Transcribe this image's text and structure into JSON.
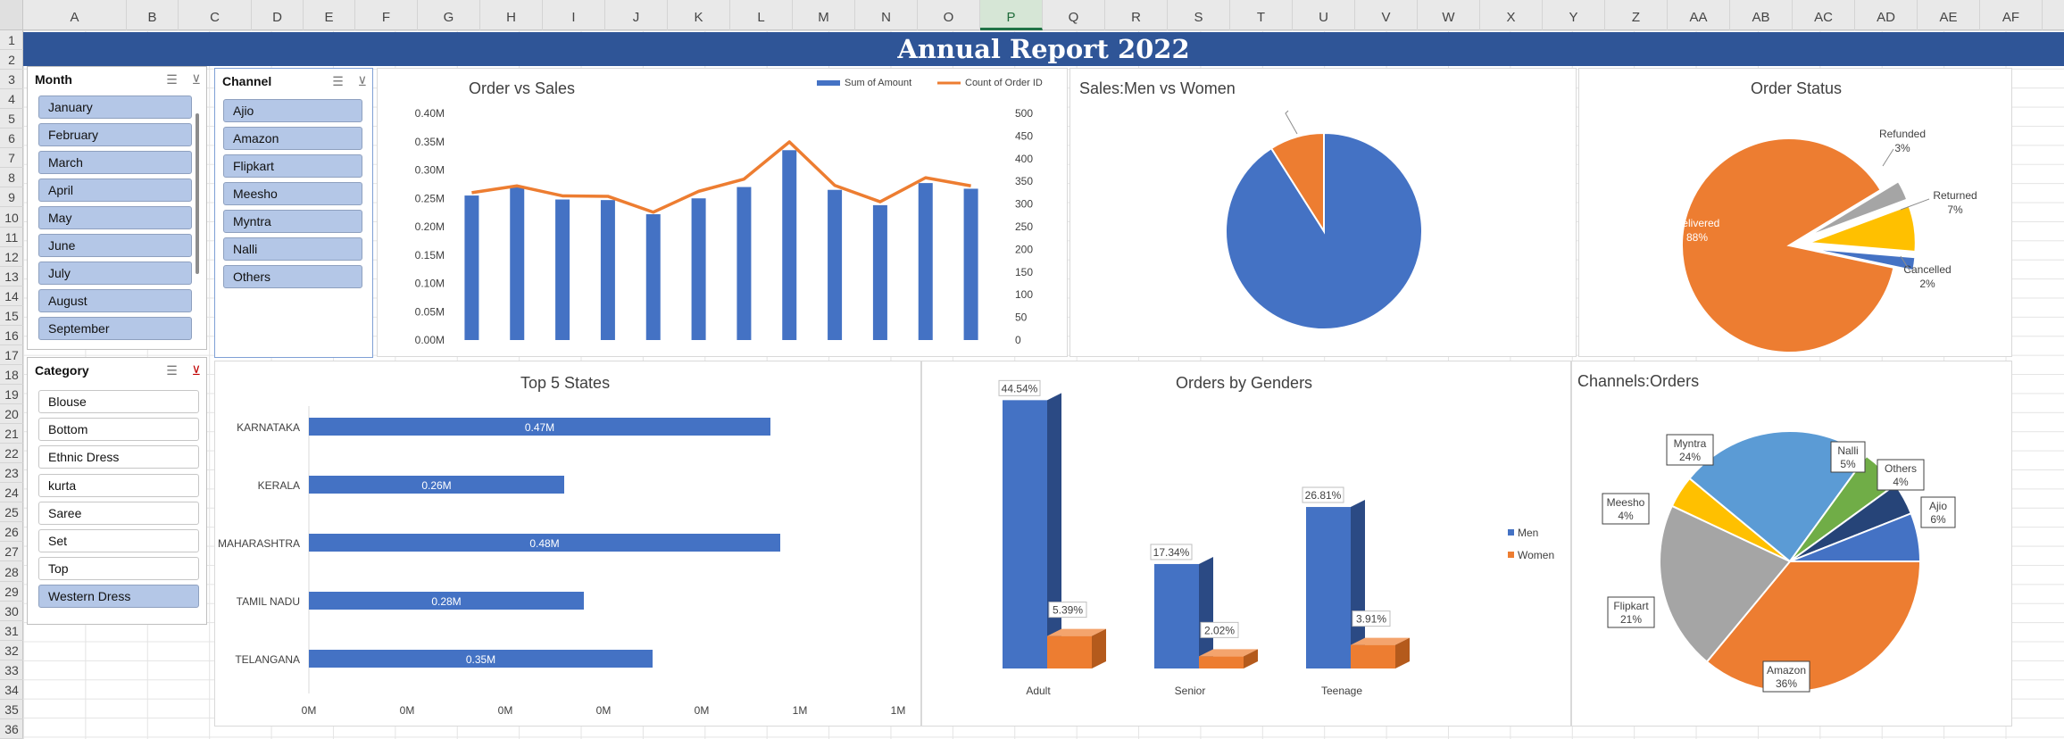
{
  "sheet": {
    "columns": [
      "A",
      "B",
      "C",
      "D",
      "E",
      "F",
      "G",
      "H",
      "I",
      "J",
      "K",
      "L",
      "M",
      "N",
      "O",
      "P",
      "Q",
      "R",
      "S",
      "T",
      "U",
      "V",
      "W",
      "X",
      "Y",
      "Z",
      "AA",
      "AB",
      "AC",
      "AD",
      "AE",
      "AF"
    ],
    "selected_column": "P",
    "rows": [
      "1",
      "2",
      "3",
      "4",
      "5",
      "6",
      "7",
      "8",
      "9",
      "10",
      "11",
      "12",
      "13",
      "14",
      "15",
      "16",
      "17",
      "18",
      "19",
      "20",
      "21",
      "22",
      "23",
      "24",
      "25",
      "26",
      "27",
      "28",
      "29",
      "30",
      "31",
      "32",
      "33",
      "34",
      "35",
      "36"
    ]
  },
  "dashboard": {
    "title": "Annual Report 2022"
  },
  "slicers": {
    "month": {
      "title": "Month",
      "items": [
        {
          "label": "January",
          "selected": true
        },
        {
          "label": "February",
          "selected": true
        },
        {
          "label": "March",
          "selected": true
        },
        {
          "label": "April",
          "selected": true
        },
        {
          "label": "May",
          "selected": true
        },
        {
          "label": "June",
          "selected": true
        },
        {
          "label": "July",
          "selected": true
        },
        {
          "label": "August",
          "selected": true
        },
        {
          "label": "September",
          "selected": true
        }
      ]
    },
    "channel": {
      "title": "Channel",
      "items": [
        {
          "label": "Ajio",
          "selected": true
        },
        {
          "label": "Amazon",
          "selected": true
        },
        {
          "label": "Flipkart",
          "selected": true
        },
        {
          "label": "Meesho",
          "selected": true
        },
        {
          "label": "Myntra",
          "selected": true
        },
        {
          "label": "Nalli",
          "selected": true
        },
        {
          "label": "Others",
          "selected": true
        }
      ]
    },
    "category": {
      "title": "Category",
      "items": [
        {
          "label": "Blouse",
          "selected": false
        },
        {
          "label": "Bottom",
          "selected": false
        },
        {
          "label": "Ethnic Dress",
          "selected": false
        },
        {
          "label": "kurta",
          "selected": false
        },
        {
          "label": "Saree",
          "selected": false
        },
        {
          "label": "Set",
          "selected": false
        },
        {
          "label": "Top",
          "selected": false
        },
        {
          "label": "Western Dress",
          "selected": true
        }
      ]
    }
  },
  "colors": {
    "blue": "#4472c4",
    "orange": "#ed7d31",
    "gray": "#a5a5a5",
    "yellow": "#ffc000",
    "lightblue": "#5b9bd5",
    "green": "#70ad47",
    "navy": "#264478",
    "band": "#2f5597"
  },
  "chart_data": [
    {
      "type": "bar",
      "title": "Order vs Sales",
      "series": [
        {
          "name": "Sum of Amount",
          "type": "bar",
          "axis": "left",
          "values": [
            0.255,
            0.27,
            0.248,
            0.247,
            0.222,
            0.25,
            0.27,
            0.335,
            0.265,
            0.238,
            0.277,
            0.267
          ]
        },
        {
          "name": "Count of Order ID",
          "type": "line",
          "axis": "right",
          "values": [
            325,
            340,
            318,
            317,
            282,
            328,
            355,
            437,
            341,
            305,
            358,
            340
          ]
        }
      ],
      "y_ticks": [
        "0.40M",
        "0.35M",
        "0.30M",
        "0.25M",
        "0.20M",
        "0.15M",
        "0.10M",
        "0.05M",
        "0.00M"
      ],
      "y2_ticks": [
        "500",
        "450",
        "400",
        "350",
        "300",
        "250",
        "200",
        "150",
        "100",
        "50",
        "0"
      ],
      "ylim": [
        0,
        0.4
      ],
      "y2lim": [
        0,
        500
      ],
      "legend": "top-right"
    },
    {
      "type": "pie",
      "title": "Sales:Men vs Women",
      "slices": [
        {
          "value": 91,
          "color": "#4472c4"
        },
        {
          "value": 9,
          "color": "#ed7d31"
        }
      ]
    },
    {
      "type": "pie",
      "title": "Order Status",
      "slices": [
        {
          "label": "Delivered",
          "pct": "88%",
          "value": 88,
          "color": "#ed7d31"
        },
        {
          "label": "Refunded",
          "pct": "3%",
          "value": 3,
          "color": "#a5a5a5"
        },
        {
          "label": "Returned",
          "pct": "7%",
          "value": 7,
          "color": "#ffc000"
        },
        {
          "label": "Cancelled",
          "pct": "2%",
          "value": 2,
          "color": "#4472c4"
        }
      ]
    },
    {
      "type": "bar",
      "title": "Top 5 States",
      "orientation": "horizontal",
      "categories": [
        "KARNATAKA",
        "KERALA",
        "MAHARASHTRA",
        "TAMIL NADU",
        "TELANGANA"
      ],
      "values": [
        0.47,
        0.26,
        0.48,
        0.28,
        0.35
      ],
      "value_labels": [
        "0.47M",
        "0.26M",
        "0.48M",
        "0.28M",
        "0.35M"
      ],
      "x_ticks": [
        "0M",
        "0M",
        "0M",
        "0M",
        "0M",
        "1M",
        "1M"
      ]
    },
    {
      "type": "bar",
      "title": "Orders by Genders",
      "categories": [
        "Adult",
        "Senior",
        "Teenage"
      ],
      "series": [
        {
          "name": "Men",
          "values": [
            44.54,
            17.34,
            26.81
          ],
          "labels": [
            "44.54%",
            "17.34%",
            "26.81%"
          ]
        },
        {
          "name": "Women",
          "values": [
            5.39,
            2.02,
            3.91
          ],
          "labels": [
            "5.39%",
            "2.02%",
            "3.91%"
          ]
        }
      ],
      "legend": "right"
    },
    {
      "type": "pie",
      "title": "Channels:Orders",
      "slices": [
        {
          "label": "Amazon",
          "pct": "36%",
          "value": 36,
          "color": "#ed7d31"
        },
        {
          "label": "Flipkart",
          "pct": "21%",
          "value": 21,
          "color": "#a5a5a5"
        },
        {
          "label": "Meesho",
          "pct": "4%",
          "value": 4,
          "color": "#ffc000"
        },
        {
          "label": "Myntra",
          "pct": "24%",
          "value": 24,
          "color": "#5b9bd5"
        },
        {
          "label": "Nalli",
          "pct": "5%",
          "value": 5,
          "color": "#70ad47"
        },
        {
          "label": "Others",
          "pct": "4%",
          "value": 4,
          "color": "#264478"
        },
        {
          "label": "Ajio",
          "pct": "6%",
          "value": 6,
          "color": "#4472c4"
        }
      ]
    }
  ]
}
